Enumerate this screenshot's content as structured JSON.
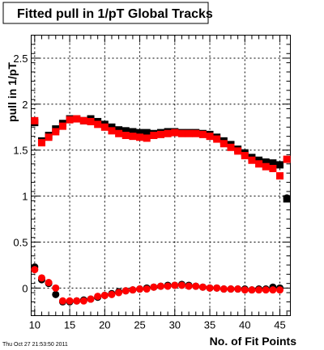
{
  "chart_data": {
    "type": "scatter",
    "title": "Fitted pull in 1/pT  Global Tracks",
    "xlabel": "No. of Fit Points",
    "ylabel": "pull in 1/pT",
    "xlim": [
      9.5,
      46.5
    ],
    "ylim": [
      -0.3,
      2.75
    ],
    "xticks": [
      10,
      15,
      20,
      25,
      30,
      35,
      40,
      45
    ],
    "yticks": [
      0,
      0.5,
      1,
      1.5,
      2,
      2.5
    ],
    "ytick_labels": [
      "0",
      "0.5",
      "1",
      "1.5",
      "2",
      "2.5"
    ],
    "grid": true,
    "timestamp": "Thu Oct 27 21:53:50 2011",
    "series": [
      {
        "color": "#000000",
        "marker": "square",
        "x": [
          10,
          11,
          12,
          13,
          14,
          15,
          16,
          17,
          18,
          19,
          20,
          21,
          22,
          23,
          24,
          25,
          26,
          27,
          28,
          29,
          30,
          31,
          32,
          33,
          34,
          35,
          36,
          37,
          38,
          39,
          40,
          41,
          42,
          43,
          44,
          45,
          46
        ],
        "values": [
          1.8,
          1.6,
          1.66,
          1.73,
          1.79,
          1.84,
          1.84,
          1.82,
          1.84,
          1.81,
          1.78,
          1.75,
          1.72,
          1.71,
          1.7,
          1.69,
          1.69,
          1.68,
          1.69,
          1.7,
          1.7,
          1.69,
          1.69,
          1.69,
          1.68,
          1.67,
          1.64,
          1.6,
          1.56,
          1.51,
          1.47,
          1.42,
          1.39,
          1.37,
          1.36,
          1.34,
          0.97
        ]
      },
      {
        "color": "#ff0000",
        "marker": "square",
        "x": [
          10,
          11,
          12,
          13,
          14,
          15,
          16,
          17,
          18,
          19,
          20,
          21,
          22,
          23,
          24,
          25,
          26,
          27,
          28,
          29,
          30,
          31,
          32,
          33,
          34,
          35,
          36,
          37,
          38,
          39,
          40,
          41,
          42,
          43,
          44,
          45,
          46
        ],
        "values": [
          1.82,
          1.58,
          1.64,
          1.7,
          1.76,
          1.83,
          1.84,
          1.82,
          1.81,
          1.78,
          1.75,
          1.71,
          1.68,
          1.66,
          1.65,
          1.64,
          1.63,
          1.66,
          1.67,
          1.68,
          1.69,
          1.68,
          1.68,
          1.68,
          1.67,
          1.65,
          1.62,
          1.57,
          1.53,
          1.49,
          1.44,
          1.39,
          1.35,
          1.32,
          1.3,
          1.22,
          1.4
        ]
      },
      {
        "color": "#000000",
        "marker": "circle",
        "x": [
          10,
          11,
          12,
          13,
          14,
          15,
          16,
          17,
          18,
          19,
          20,
          21,
          22,
          23,
          24,
          25,
          26,
          27,
          28,
          29,
          30,
          31,
          32,
          33,
          34,
          35,
          36,
          37,
          38,
          39,
          40,
          41,
          42,
          43,
          44,
          45,
          46
        ],
        "values": [
          0.23,
          0.09,
          0.05,
          -0.07,
          -0.15,
          -0.15,
          -0.14,
          -0.13,
          -0.12,
          -0.1,
          -0.08,
          -0.06,
          -0.04,
          -0.03,
          -0.02,
          -0.01,
          0.0,
          0.01,
          0.02,
          0.03,
          0.03,
          0.04,
          0.03,
          0.02,
          0.01,
          0.0,
          0.0,
          -0.01,
          -0.01,
          -0.01,
          -0.01,
          -0.02,
          -0.01,
          -0.01,
          0.01,
          0.0,
          0.98
        ]
      },
      {
        "color": "#ff0000",
        "marker": "circle",
        "x": [
          10,
          11,
          12,
          13,
          14,
          15,
          16,
          17,
          18,
          19,
          20,
          21,
          22,
          23,
          24,
          25,
          26,
          27,
          28,
          29,
          30,
          31,
          32,
          33,
          34,
          35,
          36,
          37,
          38,
          39,
          40,
          41,
          42,
          43,
          44,
          45,
          46
        ],
        "values": [
          0.2,
          0.11,
          0.06,
          0.0,
          -0.14,
          -0.14,
          -0.14,
          -0.14,
          -0.12,
          -0.09,
          -0.08,
          -0.07,
          -0.05,
          -0.03,
          -0.02,
          -0.01,
          -0.01,
          0.01,
          0.02,
          0.02,
          0.03,
          0.03,
          0.02,
          0.02,
          0.01,
          0.0,
          0.0,
          -0.01,
          -0.01,
          -0.01,
          -0.02,
          -0.02,
          -0.02,
          -0.02,
          -0.02,
          -0.02,
          1.4
        ]
      }
    ]
  }
}
